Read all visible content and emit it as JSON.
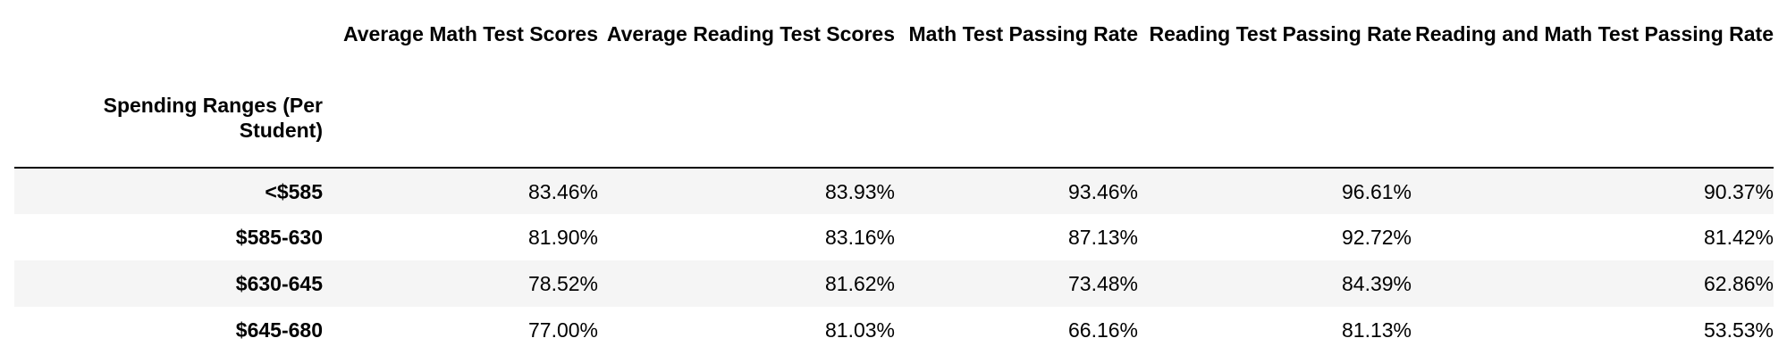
{
  "table": {
    "columns": [
      "Average Math Test Scores",
      "Average Reading Test Scores",
      "Math Test Passing Rate",
      "Reading Test Passing Rate",
      "Reading and Math Test Passing Rate"
    ],
    "index_name": "Spending Ranges (Per Student)",
    "rows": [
      {
        "label": "<$585",
        "values": [
          "83.46%",
          "83.93%",
          "93.46%",
          "96.61%",
          "90.37%"
        ]
      },
      {
        "label": "$585-630",
        "values": [
          "81.90%",
          "83.16%",
          "87.13%",
          "92.72%",
          "81.42%"
        ]
      },
      {
        "label": "$630-645",
        "values": [
          "78.52%",
          "81.62%",
          "73.48%",
          "84.39%",
          "62.86%"
        ]
      },
      {
        "label": "$645-680",
        "values": [
          "77.00%",
          "81.03%",
          "66.16%",
          "81.13%",
          "53.53%"
        ]
      }
    ]
  }
}
